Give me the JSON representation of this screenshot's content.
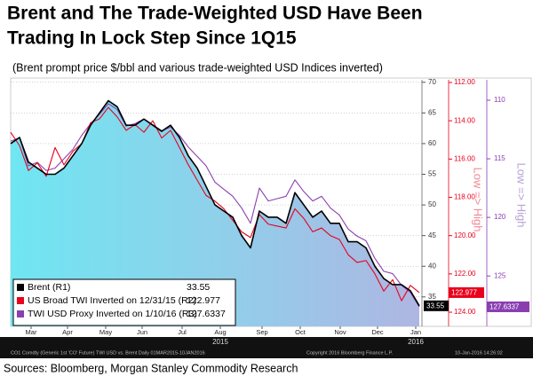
{
  "chart_data": {
    "type": "line",
    "title": [
      "Brent and The Trade-Weighted USD Have Been",
      "Trading In Lock Step Since 1Q15"
    ],
    "subtitle": "(Brent prompt price $/bbl and various trade-weighted USD Indices inverted)",
    "source": "Sources: Bloomberg, Morgan Stanley Commodity Research",
    "footer": [
      "CO1 Comdty (Generic 1st 'CO' Future) TWI USD vs. Brent  Daily 01MAR2015-10JAN2016",
      "Copyright 2016 Bloomberg Finance L.P.",
      "10-Jan-2016 14:26:02"
    ],
    "xlim": [
      0,
      46.3
    ],
    "xticks": [
      {
        "value": 2.3,
        "label": "Mar"
      },
      {
        "value": 6.4,
        "label": "Apr"
      },
      {
        "value": 10.7,
        "label": "May"
      },
      {
        "value": 14.8,
        "label": "Jun"
      },
      {
        "value": 19.3,
        "label": "Jul"
      },
      {
        "value": 23.6,
        "label": "Aug"
      },
      {
        "value": 28.3,
        "label": "Sep"
      },
      {
        "value": 32.6,
        "label": "Oct"
      },
      {
        "value": 37.1,
        "label": "Nov"
      },
      {
        "value": 41.3,
        "label": "Dec"
      },
      {
        "value": 45.6,
        "label": "Jan"
      }
    ],
    "years": [
      {
        "value": 23.6,
        "label": "2015"
      },
      {
        "value": 45.6,
        "label": "2016"
      }
    ],
    "ylim": [
      30.2,
      70.4
    ],
    "yticks": [
      35,
      40,
      45,
      50,
      55,
      60,
      65,
      70
    ],
    "y2lim": [
      124.74,
      111.86
    ],
    "y2ticks": [
      {
        "value": 112,
        "label": "112.00"
      },
      {
        "value": 114,
        "label": "114.00"
      },
      {
        "value": 116,
        "label": "116.00"
      },
      {
        "value": 118,
        "label": "118.00"
      },
      {
        "value": 120,
        "label": "120.00"
      },
      {
        "value": 122,
        "label": "122.00"
      },
      {
        "value": 124,
        "label": "124.00"
      }
    ],
    "y2label": "Low => High",
    "y3lim": [
      129.3,
      108.26
    ],
    "y3ticks": [
      110,
      115,
      120,
      125
    ],
    "y3label": "Low => High",
    "grid": true,
    "legend": "bottom-left",
    "series": [
      {
        "name": "Brent (R1)",
        "color": "#000000",
        "axis": "y",
        "value_label": "33.55",
        "values": [
          60,
          61,
          57,
          56,
          55,
          55,
          56,
          58,
          60,
          63,
          65,
          67,
          66,
          63,
          63,
          64,
          63,
          62,
          63,
          61,
          58,
          56,
          53,
          50,
          49,
          48,
          45,
          43,
          49,
          48,
          48,
          47,
          52,
          50,
          48,
          49,
          47,
          47,
          44,
          44,
          43,
          40,
          38,
          37,
          37,
          36,
          33.55
        ]
      },
      {
        "name": "US Broad TWI Inverted on 12/31/15 (R2)",
        "color": "#e8001c",
        "axis": "y2",
        "value_label": "122.977",
        "values": [
          114.6,
          115.3,
          116.6,
          116.2,
          116.9,
          115.4,
          116.3,
          115.6,
          115.2,
          114.1,
          113.9,
          113.3,
          113.8,
          114.5,
          114.2,
          114.6,
          114.0,
          114.9,
          114.5,
          115.4,
          116.3,
          117.1,
          117.9,
          118.2,
          118.6,
          119.2,
          119.8,
          120.1,
          118.9,
          119.4,
          119.5,
          119.6,
          118.6,
          119.1,
          119.8,
          119.6,
          120.0,
          120.2,
          121.0,
          121.4,
          121.3,
          122.0,
          122.9,
          122.3,
          123.4,
          122.6,
          122.977
        ]
      },
      {
        "name": "TWI USD Proxy Inverted on 1/10/16 (R3)",
        "color": "#8a3fb0",
        "axis": "y3",
        "value_label": "127.6337",
        "values": [
          113.5,
          113.2,
          115.6,
          115.3,
          116.0,
          115.8,
          115.0,
          114.2,
          113.0,
          112.0,
          111.2,
          110.3,
          110.8,
          112.2,
          112.0,
          111.6,
          112.1,
          112.6,
          112.3,
          113.0,
          114.0,
          114.8,
          115.6,
          117.0,
          117.6,
          118.2,
          119.2,
          120.5,
          117.5,
          118.6,
          118.4,
          118.2,
          116.8,
          117.8,
          118.6,
          118.2,
          119.2,
          119.8,
          121.0,
          121.6,
          122.0,
          123.5,
          124.6,
          124.8,
          125.8,
          126.4,
          127.6337
        ]
      }
    ]
  }
}
